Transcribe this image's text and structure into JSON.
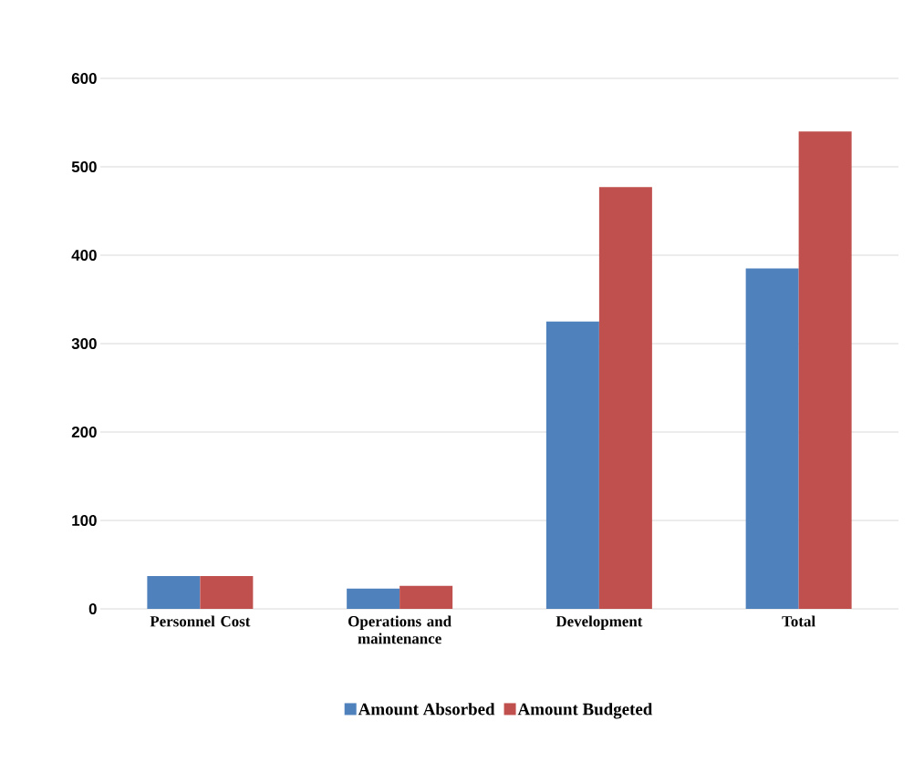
{
  "chart_data": {
    "type": "bar",
    "categories": [
      "Personnel Cost",
      "Operations and maintenance",
      "Development",
      "Total"
    ],
    "series": [
      {
        "name": "Amount Absorbed",
        "color": "#4f81bd",
        "values": [
          37,
          23,
          325,
          385
        ]
      },
      {
        "name": "Amount Budgeted",
        "color": "#c0504d",
        "values": [
          37,
          26,
          477,
          540
        ]
      }
    ],
    "ylim": [
      0,
      600
    ],
    "yticks": [
      0,
      100,
      200,
      300,
      400,
      500,
      600
    ],
    "grid": "y",
    "legend": "bottom"
  }
}
